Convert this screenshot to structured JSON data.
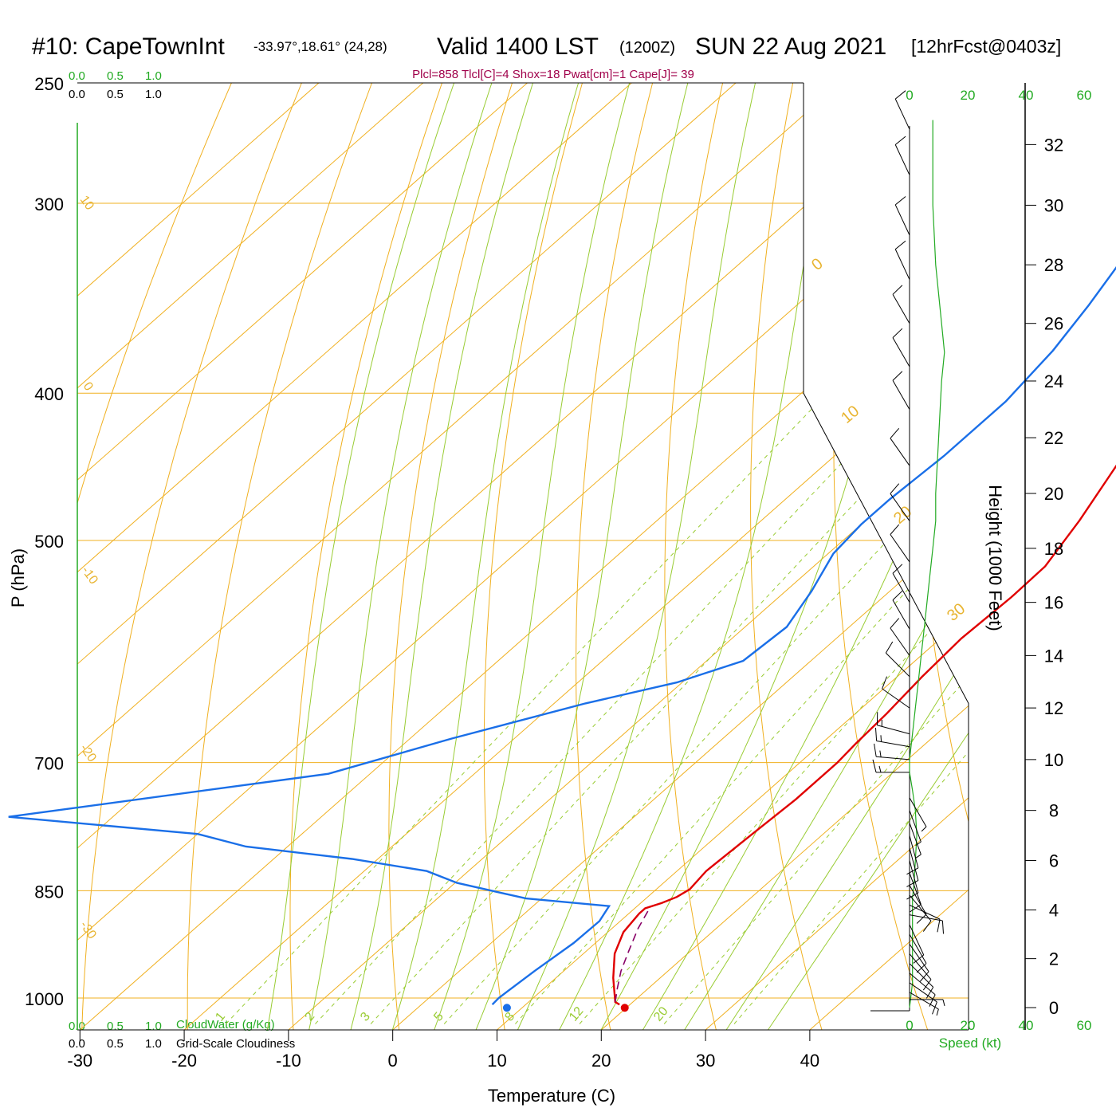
{
  "title": {
    "station": "#10: CapeTownInt",
    "coords": "-33.97°,18.61° (24,28)",
    "valid": "Valid 1400 LST",
    "zulu": "(1200Z)",
    "date": "SUN 22 Aug 2021",
    "forecast": "[12hrFcst@0403z]"
  },
  "indices": "Plcl=858 Tlcl[C]=4 Shox=18 Pwat[cm]=1 Cape[J]= 39",
  "colors": {
    "temperature": "#e00000",
    "dewpoint": "#1a6fe8",
    "parcel": "#880066",
    "isotherm": "#f0b020",
    "dry_adiabat": "#f0b020",
    "moist_adiabat": "#99cc33",
    "mixing_ratio": "#99cc33",
    "speed": "#22aa22"
  },
  "labels": {
    "ylabel": "P (hPa)",
    "xlabel": "Temperature (C)",
    "height_label": "Height (1000 Feet)",
    "speed_label": "Speed (kt)",
    "cloudwater_label": "CloudWater (g/Kg)",
    "cloudiness_label": "Grid-Scale Cloudiness"
  },
  "cloud_scale": [
    "0.0",
    "0.5",
    "1.0"
  ],
  "speed_ticks": [
    "0",
    "20",
    "40",
    "60"
  ],
  "chart_data": {
    "type": "line",
    "yscale": "log",
    "xlim": [
      -34,
      36
    ],
    "ylim": [
      1050,
      250
    ],
    "x_ticks": [
      -30,
      -20,
      -10,
      0,
      10,
      20,
      30,
      40
    ],
    "pressure_ticks": [
      250,
      300,
      400,
      500,
      700,
      850,
      1000
    ],
    "height_ticks": [
      0,
      2,
      4,
      6,
      8,
      10,
      12,
      14,
      16,
      18,
      20,
      22,
      24,
      26,
      28,
      30,
      32
    ],
    "isotherm_labels": [
      -30,
      -20,
      -10,
      0,
      10,
      20,
      30,
      40
    ],
    "dry_adiabat_labels": [
      10,
      0,
      -10,
      -20,
      -30
    ],
    "mixing_ratio_labels": [
      1,
      2,
      3,
      5,
      8,
      12,
      20
    ],
    "series": [
      {
        "key": "temperature",
        "points": [
          [
            19.0,
            1010
          ],
          [
            18.3,
            1006
          ],
          [
            15.5,
            970
          ],
          [
            13.0,
            935
          ],
          [
            11.5,
            905
          ],
          [
            11.0,
            880
          ],
          [
            11.0,
            873
          ],
          [
            12.0,
            866
          ],
          [
            12.8,
            858
          ],
          [
            13.2,
            848
          ],
          [
            12.8,
            825
          ],
          [
            13.2,
            780
          ],
          [
            13.6,
            740
          ],
          [
            13.6,
            700
          ],
          [
            13.3,
            680
          ],
          [
            13.0,
            650
          ],
          [
            12.4,
            615
          ],
          [
            12.0,
            580
          ],
          [
            12.3,
            545
          ],
          [
            12.2,
            520
          ],
          [
            10.5,
            485
          ],
          [
            8.0,
            445
          ],
          [
            5.0,
            405
          ],
          [
            2.5,
            375
          ],
          [
            0.0,
            345
          ],
          [
            -2.5,
            318
          ],
          [
            -5.0,
            293
          ],
          [
            -7.5,
            270
          ],
          [
            -9.0,
            256
          ]
        ]
      },
      {
        "key": "dewpoint",
        "points": [
          [
            6.8,
            1010
          ],
          [
            6.7,
            1000
          ],
          [
            7.2,
            960
          ],
          [
            7.9,
            920
          ],
          [
            8.0,
            890
          ],
          [
            7.3,
            870
          ],
          [
            -1.5,
            860
          ],
          [
            -9.8,
            840
          ],
          [
            -14.0,
            825
          ],
          [
            -22.5,
            810
          ],
          [
            -34.0,
            795
          ],
          [
            -40.0,
            780
          ],
          [
            -60.0,
            760
          ],
          [
            -34.0,
            712
          ],
          [
            -26.0,
            675
          ],
          [
            -17.0,
            640
          ],
          [
            -10.5,
            620
          ],
          [
            -6.5,
            600
          ],
          [
            -6.0,
            570
          ],
          [
            -7.5,
            540
          ],
          [
            -9.5,
            510
          ],
          [
            -10.0,
            488
          ],
          [
            -10.0,
            470
          ],
          [
            -9.5,
            440
          ],
          [
            -9.5,
            405
          ],
          [
            -10.5,
            375
          ],
          [
            -12.0,
            350
          ],
          [
            -13.5,
            330
          ],
          [
            -15.0,
            313
          ],
          [
            -16.0,
            300
          ],
          [
            -16.0,
            285
          ],
          [
            -15.0,
            270
          ],
          [
            -14.0,
            256
          ]
        ]
      },
      {
        "key": "parcel",
        "points": [
          [
            18.3,
            1006
          ],
          [
            17.0,
            985
          ],
          [
            15.5,
            960
          ],
          [
            14.0,
            930
          ],
          [
            12.5,
            900
          ],
          [
            11.5,
            875
          ]
        ]
      }
    ],
    "surface_points": {
      "temperature": 19.5,
      "dewpoint": 8.2
    },
    "isotherms_c": [
      -110,
      -100,
      -90,
      -80,
      -70,
      -60,
      -50,
      -40,
      -30,
      -20,
      -10,
      0,
      10,
      20,
      30,
      40
    ],
    "dry_adiabats_theta_k": [
      230,
      240,
      250,
      260,
      270,
      280,
      290,
      300,
      310,
      320,
      330,
      340,
      350,
      360,
      370,
      380,
      390,
      400,
      410,
      420,
      430,
      440
    ],
    "moist_adiabats_start_c": [
      -12,
      -8,
      -4,
      0,
      4,
      8,
      12,
      16,
      20,
      24,
      28,
      32,
      36
    ],
    "mixing_ratios_gkg": [
      1,
      2,
      3,
      5,
      8,
      12,
      20,
      30
    ],
    "winds": [
      {
        "height_kft": 0.3,
        "dir": 270,
        "speed": 5
      },
      {
        "height_kft": 0.6,
        "dir": 300,
        "speed": 8
      },
      {
        "height_kft": 1.0,
        "dir": 305,
        "speed": 11
      },
      {
        "height_kft": 1.4,
        "dir": 310,
        "speed": 12
      },
      {
        "height_kft": 1.8,
        "dir": 315,
        "speed": 12
      },
      {
        "height_kft": 2.2,
        "dir": 320,
        "speed": 12
      },
      {
        "height_kft": 2.6,
        "dir": 325,
        "speed": 11
      },
      {
        "height_kft": 3.0,
        "dir": 330,
        "speed": 11
      },
      {
        "height_kft": 3.4,
        "dir": 335,
        "speed": 11
      },
      {
        "height_kft": 3.8,
        "dir": 280,
        "speed": 12
      },
      {
        "height_kft": 4.2,
        "dir": 295,
        "speed": 12
      },
      {
        "height_kft": 4.6,
        "dir": 320,
        "speed": 11
      },
      {
        "height_kft": 5.0,
        "dir": 330,
        "speed": 11
      },
      {
        "height_kft": 5.5,
        "dir": 340,
        "speed": 11
      },
      {
        "height_kft": 6.0,
        "dir": 345,
        "speed": 11
      },
      {
        "height_kft": 6.5,
        "dir": 345,
        "speed": 10
      },
      {
        "height_kft": 7.0,
        "dir": 345,
        "speed": 10
      },
      {
        "height_kft": 7.5,
        "dir": 340,
        "speed": 9
      },
      {
        "height_kft": 8.0,
        "dir": 340,
        "speed": 8
      },
      {
        "height_kft": 8.5,
        "dir": 330,
        "speed": 6
      },
      {
        "height_kft": 9.5,
        "dir": 90,
        "speed": 15
      },
      {
        "height_kft": 10.0,
        "dir": 95,
        "speed": 15
      },
      {
        "height_kft": 10.5,
        "dir": 100,
        "speed": 15
      },
      {
        "height_kft": 11.0,
        "dir": 105,
        "speed": 15
      },
      {
        "height_kft": 12.0,
        "dir": 125,
        "speed": 14
      },
      {
        "height_kft": 13.2,
        "dir": 135,
        "speed": 13
      },
      {
        "height_kft": 14.0,
        "dir": 145,
        "speed": 11
      },
      {
        "height_kft": 15.0,
        "dir": 150,
        "speed": 10
      },
      {
        "height_kft": 16.0,
        "dir": 150,
        "speed": 11
      },
      {
        "height_kft": 17.5,
        "dir": 145,
        "speed": 12
      },
      {
        "height_kft": 19.0,
        "dir": 145,
        "speed": 12
      },
      {
        "height_kft": 21.0,
        "dir": 145,
        "speed": 12
      },
      {
        "height_kft": 23.0,
        "dir": 150,
        "speed": 13
      },
      {
        "height_kft": 24.5,
        "dir": 150,
        "speed": 13
      },
      {
        "height_kft": 26.0,
        "dir": 150,
        "speed": 13
      },
      {
        "height_kft": 27.5,
        "dir": 155,
        "speed": 14
      },
      {
        "height_kft": 29.0,
        "dir": 155,
        "speed": 14
      },
      {
        "height_kft": 31.0,
        "dir": 155,
        "speed": 14
      },
      {
        "height_kft": 32.5,
        "dir": 155,
        "speed": 14
      }
    ],
    "speed_profile": [
      [
        0,
        0
      ],
      [
        1,
        1
      ],
      [
        3,
        1
      ],
      [
        4,
        1
      ],
      [
        4.5,
        1
      ],
      [
        5,
        1.5
      ],
      [
        6,
        2
      ],
      [
        7,
        2.5
      ],
      [
        8,
        2
      ],
      [
        8.8,
        1
      ],
      [
        9.5,
        0
      ],
      [
        10,
        0
      ],
      [
        11,
        1
      ],
      [
        12,
        2
      ],
      [
        13,
        3
      ],
      [
        14,
        4
      ],
      [
        15,
        5
      ],
      [
        16,
        6
      ],
      [
        17,
        7
      ],
      [
        18,
        8
      ],
      [
        19,
        9
      ],
      [
        20,
        9
      ],
      [
        22,
        10
      ],
      [
        24,
        11
      ],
      [
        25,
        12
      ],
      [
        26,
        11
      ],
      [
        28,
        9
      ],
      [
        30,
        8
      ],
      [
        32,
        8
      ],
      [
        32.8,
        8
      ]
    ]
  }
}
